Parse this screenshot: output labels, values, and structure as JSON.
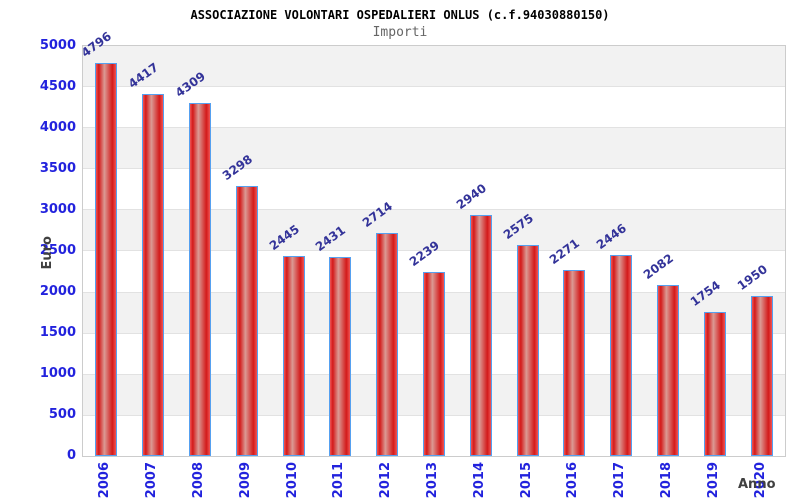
{
  "chart_data": {
    "type": "bar",
    "title": "ASSOCIAZIONE VOLONTARI OSPEDALIERI ONLUS (c.f.94030880150)",
    "subtitle": "Importi",
    "xlabel": "Anno",
    "ylabel": "Euro",
    "categories": [
      "2006",
      "2007",
      "2008",
      "2009",
      "2010",
      "2011",
      "2012",
      "2013",
      "2014",
      "2015",
      "2016",
      "2017",
      "2018",
      "2019",
      "2020"
    ],
    "values": [
      4796,
      4417,
      4309,
      3298,
      2445,
      2431,
      2714,
      2239,
      2940,
      2575,
      2271,
      2446,
      2082,
      1754,
      1950
    ],
    "ylim": [
      0,
      5000
    ],
    "yticks": [
      0,
      500,
      1000,
      1500,
      2000,
      2500,
      3000,
      3500,
      4000,
      4500,
      5000
    ],
    "grid": "alternating horizontal bands, gray band at top interval",
    "legend": "none",
    "value_labels": "above each bar, rotated ~36deg counterclockwise",
    "colors": {
      "bar_fill": "#d31a1a",
      "bar_edge_light": "#f05454",
      "bar_highlight": "#db9a94",
      "bar_border": "#55a0f0",
      "tick_label": "#2222dd",
      "value_label": "#333399",
      "axis_title": "#404040",
      "band": "#f2f2f2",
      "gridline": "#e2e2e2",
      "plot_border": "#cccccc",
      "title_color": "#000000",
      "subtitle_color": "#666666"
    }
  }
}
